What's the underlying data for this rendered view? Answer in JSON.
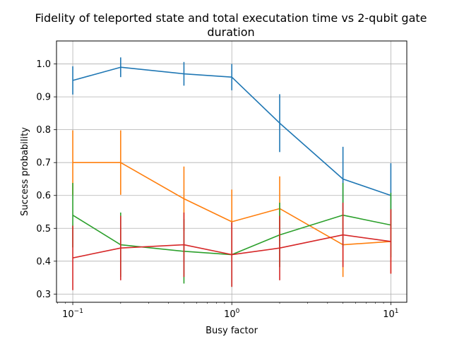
{
  "chart_data": {
    "type": "line",
    "title": [
      "Fidelity of teleported state and total executation time vs 2-qubit gate",
      "duration"
    ],
    "xlabel": "Busy factor",
    "ylabel": "Success probability",
    "xscale": "log",
    "xlim": [
      0.079,
      12.6
    ],
    "ylim": [
      0.275,
      1.07
    ],
    "grid": true,
    "x": [
      0.1,
      0.2,
      0.5,
      1,
      2,
      5,
      10
    ],
    "x_ticks": [
      {
        "value": 0.1,
        "base": "10",
        "exp": "−1"
      },
      {
        "value": 1,
        "base": "10",
        "exp": "0"
      },
      {
        "value": 10,
        "base": "10",
        "exp": "1"
      }
    ],
    "y_ticks": [
      "0.3",
      "0.4",
      "0.5",
      "0.6",
      "0.7",
      "0.8",
      "0.9",
      "1.0"
    ],
    "series": [
      {
        "color": "#1f77b4",
        "values": [
          0.95,
          0.99,
          0.97,
          0.96,
          0.82,
          0.65,
          0.6
        ],
        "errors": [
          0.043,
          0.03,
          0.036,
          0.04,
          0.088,
          0.098,
          0.098
        ]
      },
      {
        "color": "#ff7f0e",
        "values": [
          0.7,
          0.7,
          0.59,
          0.52,
          0.56,
          0.45,
          0.46
        ],
        "errors": [
          0.098,
          0.098,
          0.098,
          0.098,
          0.098,
          0.098,
          0.098
        ]
      },
      {
        "color": "#2ca02c",
        "values": [
          0.54,
          0.45,
          0.43,
          0.42,
          0.48,
          0.54,
          0.51
        ],
        "errors": [
          0.098,
          0.098,
          0.098,
          0.098,
          0.098,
          0.098,
          0.098
        ]
      },
      {
        "color": "#d62728",
        "values": [
          0.41,
          0.44,
          0.45,
          0.42,
          0.44,
          0.48,
          0.46
        ],
        "errors": [
          0.098,
          0.098,
          0.098,
          0.098,
          0.098,
          0.098,
          0.098
        ]
      }
    ]
  }
}
